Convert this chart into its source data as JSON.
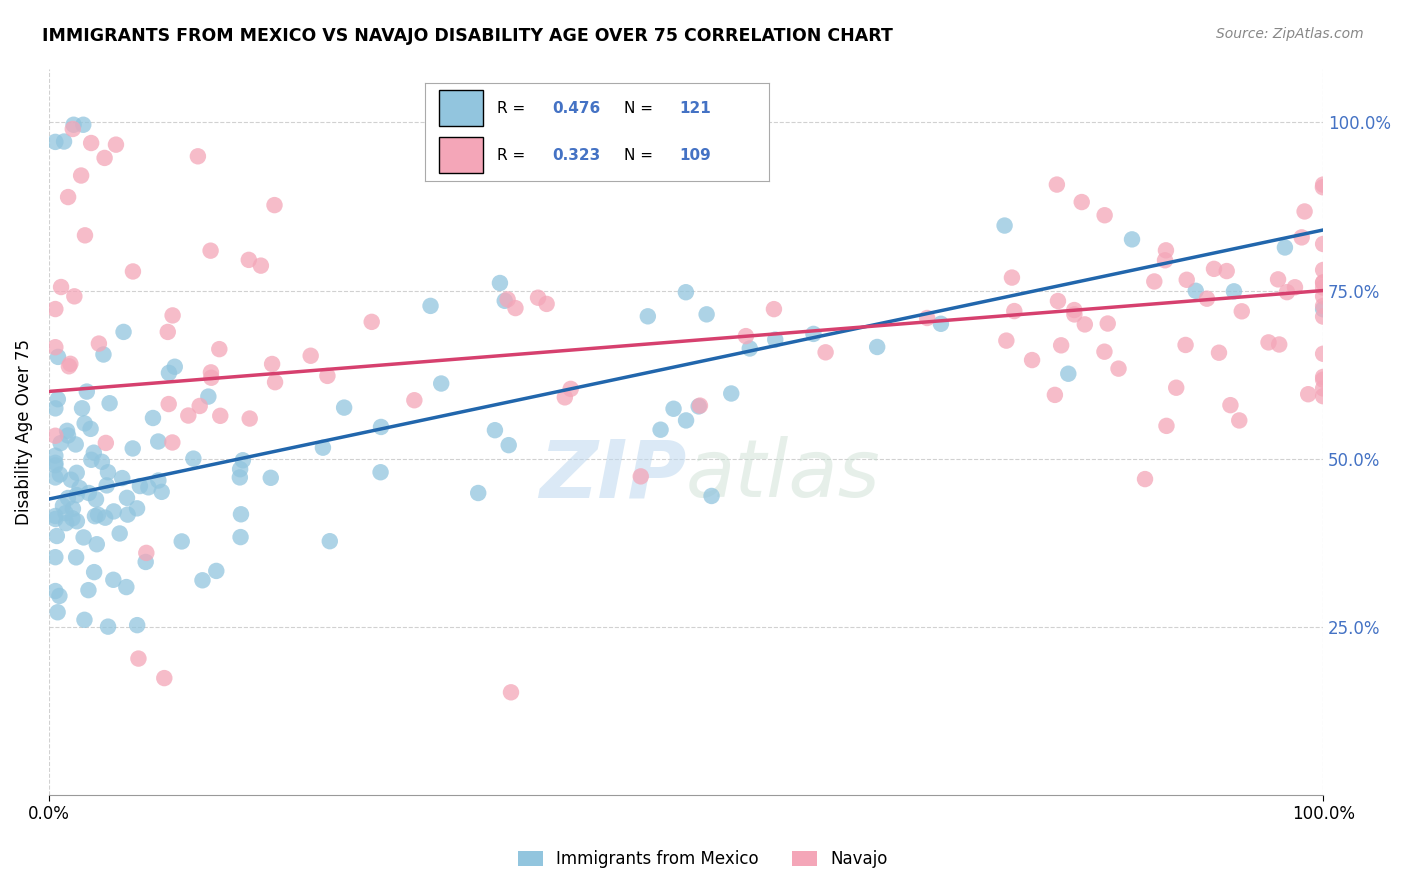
{
  "title": "IMMIGRANTS FROM MEXICO VS NAVAJO DISABILITY AGE OVER 75 CORRELATION CHART",
  "source": "Source: ZipAtlas.com",
  "ylabel": "Disability Age Over 75",
  "legend_blue_r": "0.476",
  "legend_blue_n": "121",
  "legend_pink_r": "0.323",
  "legend_pink_n": "109",
  "legend_label_blue": "Immigrants from Mexico",
  "legend_label_pink": "Navajo",
  "blue_color": "#92c5de",
  "pink_color": "#f4a6b8",
  "blue_line_color": "#2166ac",
  "pink_line_color": "#d6406e",
  "ytick_color": "#4472C4",
  "blue_r": 0.476,
  "pink_r": 0.323,
  "blue_n": 121,
  "pink_n": 109,
  "blue_intercept": 0.44,
  "blue_slope": 0.4,
  "pink_intercept": 0.6,
  "pink_slope": 0.15
}
